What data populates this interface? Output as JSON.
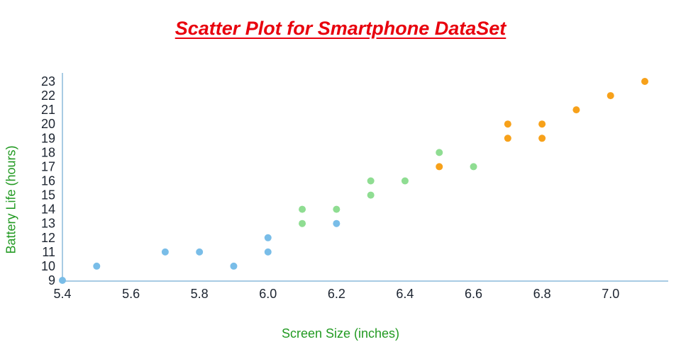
{
  "title": "Scatter Plot for Smartphone DataSet",
  "chart_data": {
    "type": "scatter",
    "title": "Scatter Plot for Smartphone DataSet",
    "xlabel": "Screen Size (inches)",
    "ylabel": "Battery Life (hours)",
    "xlim": [
      5.4,
      7.1
    ],
    "ylim": [
      9,
      23
    ],
    "x_ticks": [
      5.4,
      5.6,
      5.8,
      6.0,
      6.2,
      6.4,
      6.6,
      6.8,
      7.0
    ],
    "y_ticks": [
      9,
      10,
      11,
      12,
      13,
      14,
      15,
      16,
      17,
      18,
      19,
      20,
      21,
      22,
      23
    ],
    "grid": false,
    "legend": "none",
    "series": [
      {
        "name": "blue-group",
        "color": "#79bde8",
        "points": [
          [
            5.4,
            9
          ],
          [
            5.5,
            10
          ],
          [
            5.7,
            11
          ],
          [
            5.8,
            11
          ],
          [
            5.9,
            10
          ],
          [
            6.0,
            11
          ],
          [
            6.0,
            12
          ],
          [
            6.2,
            13
          ]
        ]
      },
      {
        "name": "green-group",
        "color": "#8fdd92",
        "points": [
          [
            6.1,
            13
          ],
          [
            6.1,
            14
          ],
          [
            6.2,
            14
          ],
          [
            6.3,
            15
          ],
          [
            6.3,
            16
          ],
          [
            6.4,
            16
          ],
          [
            6.5,
            18
          ],
          [
            6.6,
            17
          ]
        ]
      },
      {
        "name": "orange-group",
        "color": "#f7a11a",
        "points": [
          [
            6.5,
            17
          ],
          [
            6.7,
            19
          ],
          [
            6.7,
            20
          ],
          [
            6.8,
            19
          ],
          [
            6.8,
            20
          ],
          [
            6.9,
            21
          ],
          [
            7.0,
            22
          ],
          [
            7.1,
            23
          ]
        ]
      }
    ]
  },
  "colors": {
    "title": "#e8000d",
    "axis_label": "#229a22",
    "tick_label": "#1c2430",
    "axis_line": "#a8cbe4"
  }
}
